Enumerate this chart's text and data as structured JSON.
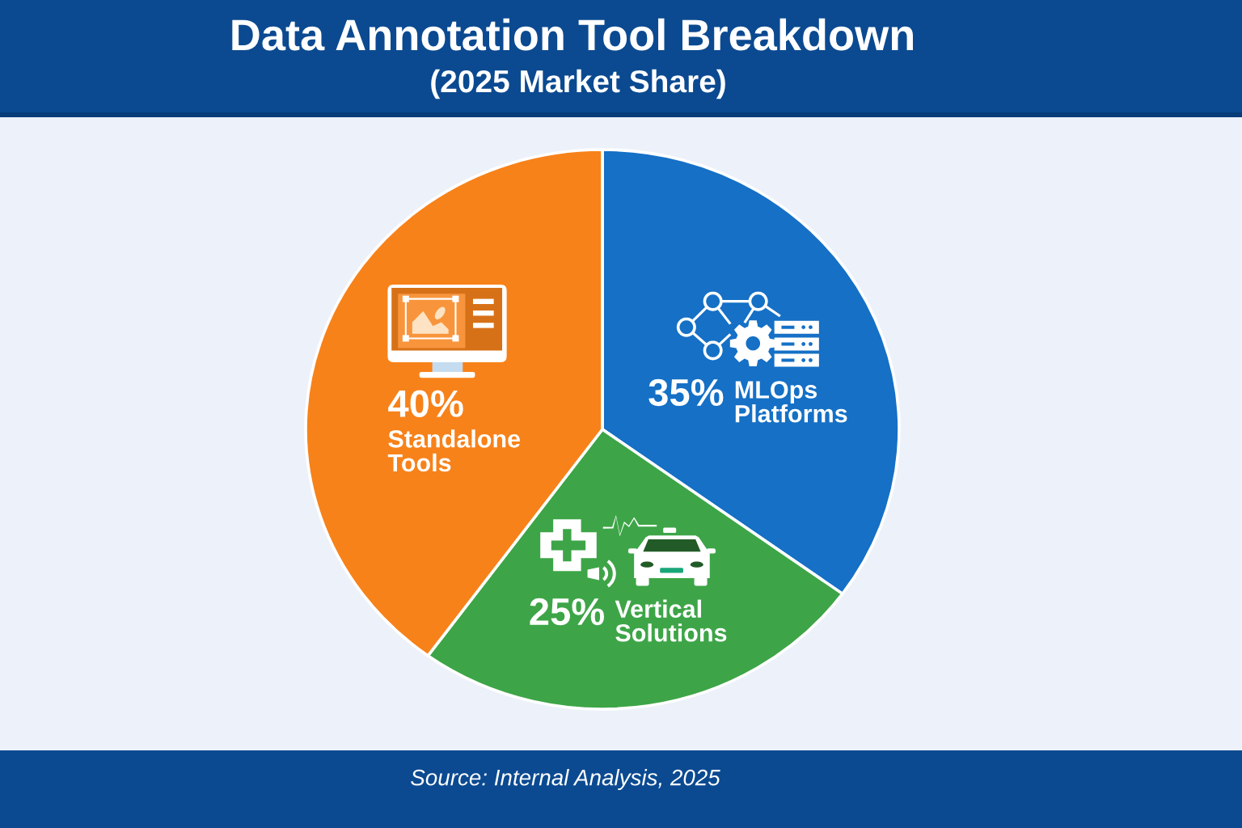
{
  "chart_data": {
    "type": "pie",
    "title": "Data Annotation Tool Breakdown",
    "subtitle": "(2025 Market Share)",
    "categories": [
      "MLOps Platforms",
      "Vertical Solutions",
      "Standalone Tools"
    ],
    "values": [
      35,
      25,
      40
    ],
    "colors": [
      "#1570c6",
      "#3da547",
      "#f7821a"
    ],
    "value_labels": [
      "35%",
      "25%",
      "40%"
    ],
    "annotations": [
      "Source: Internal Analysis, 2025"
    ]
  }
}
